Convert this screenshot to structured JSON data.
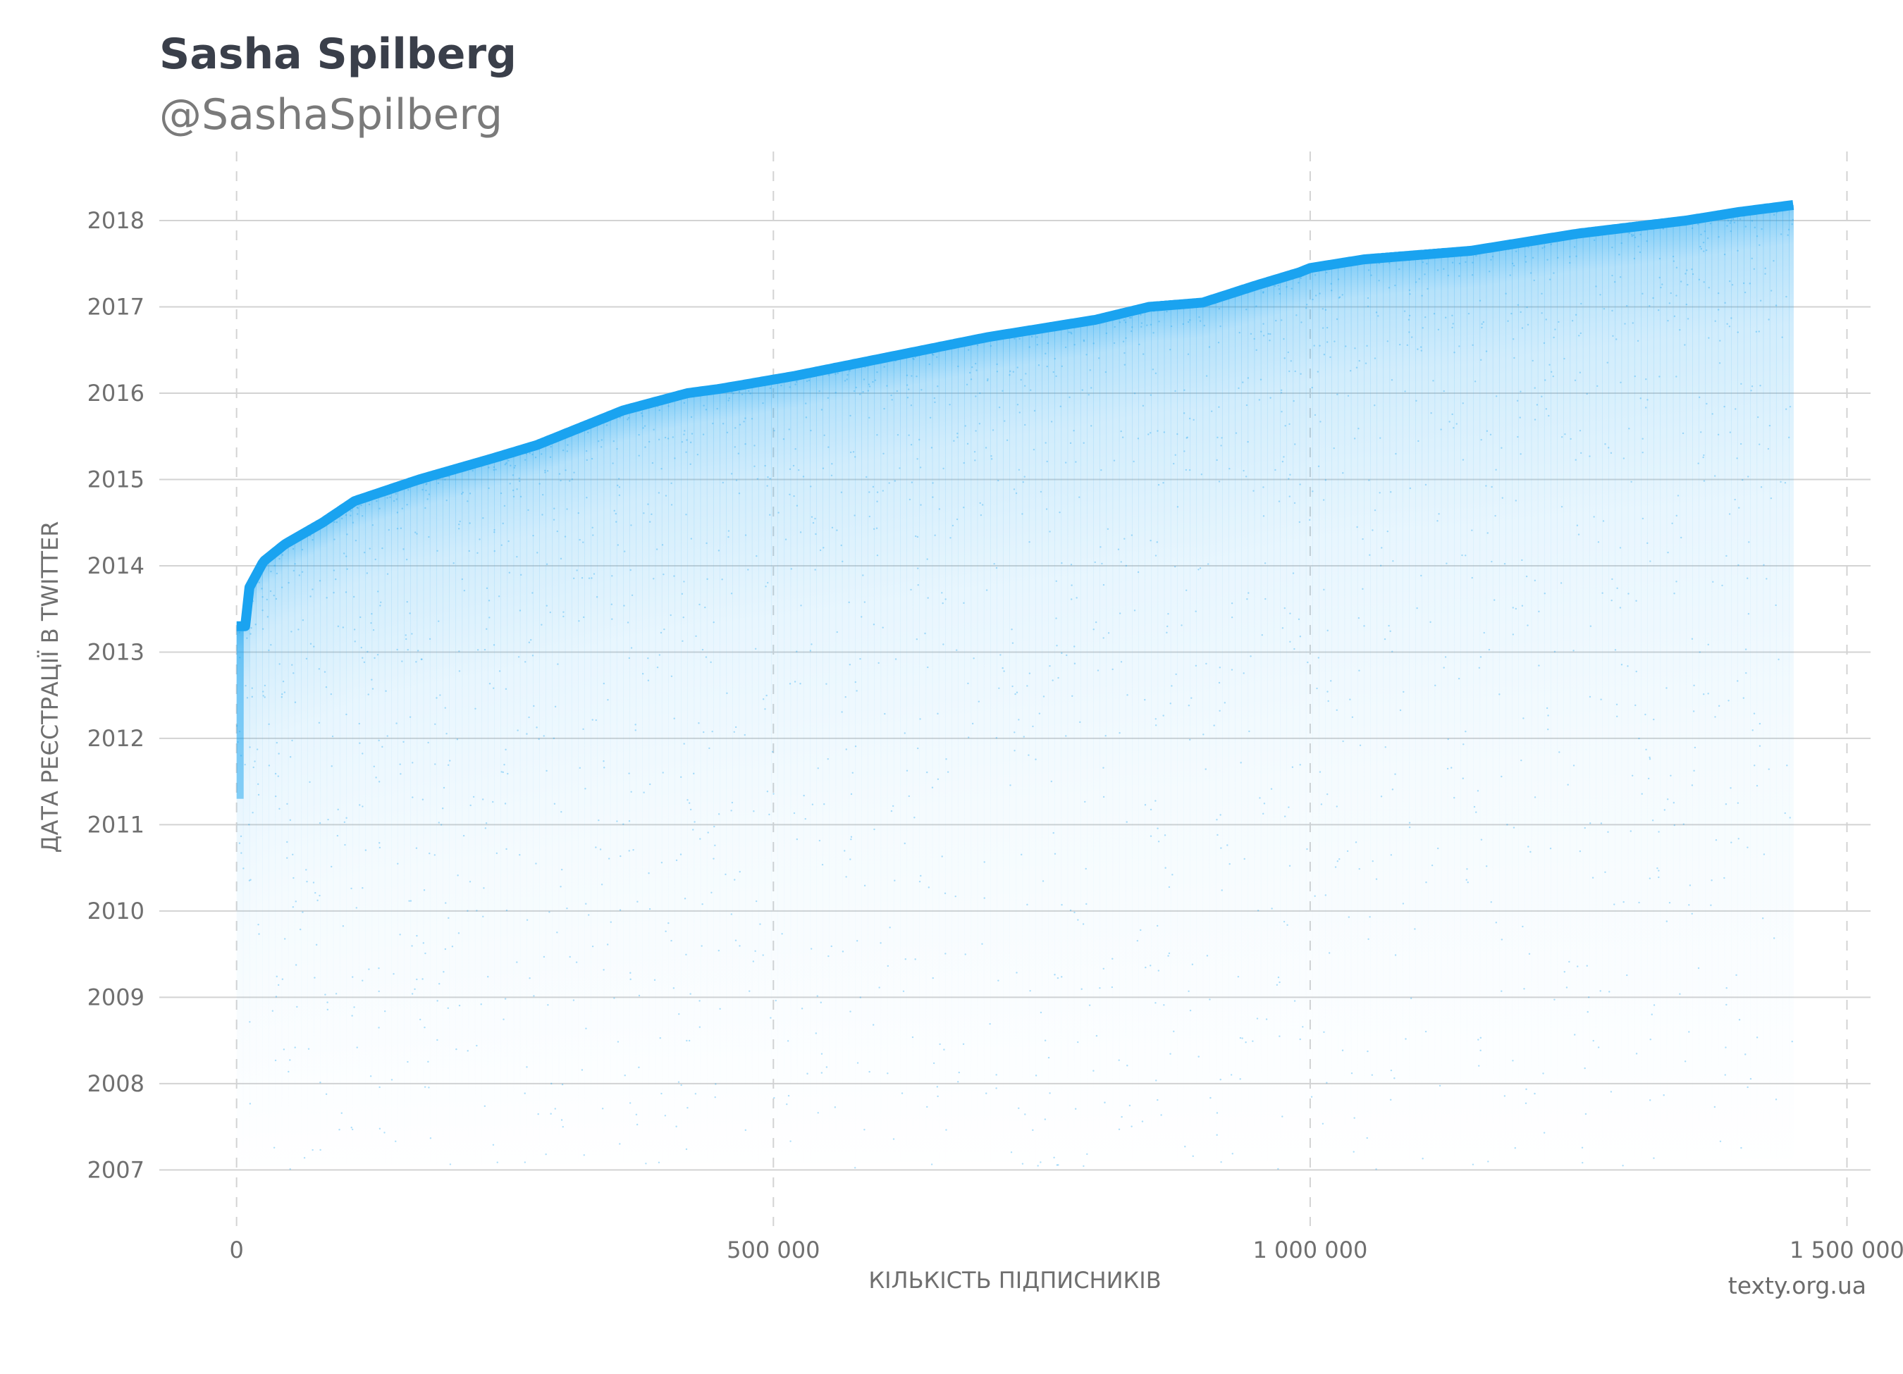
{
  "header": {
    "title": "Sasha Spilberg",
    "subtitle": "@SashaSpilberg"
  },
  "footer": {
    "credit": "texty.org.ua"
  },
  "colors": {
    "points": "#1aa3f0",
    "grid": "#d3d3d3",
    "text": "#6f6f6f"
  },
  "chart_data": {
    "type": "scatter",
    "title": "Sasha Spilberg",
    "subtitle": "@SashaSpilberg",
    "xlabel": "КІЛЬКІСТЬ ПІДПИСНИКІВ",
    "ylabel": "ДАТА РЕЄСТРАЦІЇ В TWITTER",
    "xlim": [
      -72000,
      1522000
    ],
    "ylim": [
      2006.35,
      2018.8
    ],
    "x_ticks": [
      0,
      500000,
      1000000,
      1500000
    ],
    "x_tick_labels": [
      "0",
      "500 000",
      "1 000 000",
      "1 500 000"
    ],
    "y_ticks": [
      2007,
      2008,
      2009,
      2010,
      2011,
      2012,
      2013,
      2014,
      2015,
      2016,
      2017,
      2018
    ],
    "y_tick_labels": [
      "2007",
      "2008",
      "2009",
      "2010",
      "2011",
      "2012",
      "2013",
      "2014",
      "2015",
      "2016",
      "2017",
      "2018"
    ],
    "grid": {
      "horizontal": "solid",
      "vertical": "dashed"
    },
    "upper_envelope": {
      "description": "registration date of newest follower at each follower index",
      "x": [
        0,
        8000,
        12000,
        25000,
        45000,
        80000,
        110000,
        170000,
        240000,
        280000,
        360000,
        420000,
        450000,
        520000,
        600000,
        700000,
        800000,
        850000,
        900000,
        950000,
        990000,
        1000000,
        1050000,
        1150000,
        1250000,
        1350000,
        1400000,
        1450000
      ],
      "y": [
        2013.3,
        2013.3,
        2013.75,
        2014.05,
        2014.25,
        2014.5,
        2014.75,
        2015.0,
        2015.25,
        2015.4,
        2015.8,
        2016.0,
        2016.05,
        2016.2,
        2016.4,
        2016.65,
        2016.85,
        2017.0,
        2017.05,
        2017.25,
        2017.4,
        2017.45,
        2017.55,
        2017.65,
        2017.85,
        2018.0,
        2018.1,
        2018.18
      ]
    },
    "point_count_approx": 1450000
  }
}
